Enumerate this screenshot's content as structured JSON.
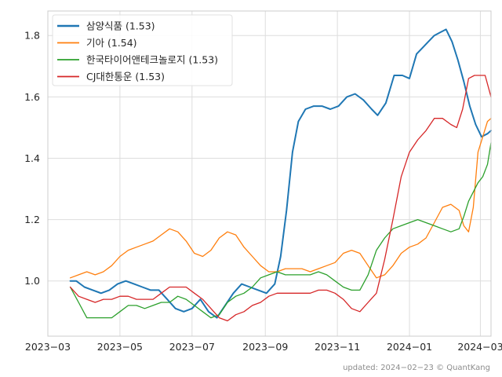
{
  "chart_data": {
    "type": "line",
    "title": "",
    "xlabel": "",
    "ylabel": "",
    "x_range": [
      "2023-03-01",
      "2024-03-10"
    ],
    "ylim": [
      0.82,
      1.88
    ],
    "grid": true,
    "legend_placement": "top-left",
    "x_ticks": [
      "2023-03-01",
      "2023-05-01",
      "2023-07-01",
      "2023-09-01",
      "2023-11-01",
      "2024-01-01",
      "2024-03-01"
    ],
    "x_tick_labels": [
      "2023−03",
      "2023−05",
      "2023−07",
      "2023−09",
      "2023−11",
      "2024−01",
      "2024−03"
    ],
    "y_ticks": [
      1.0,
      1.2,
      1.4,
      1.6,
      1.8
    ],
    "y_tick_labels": [
      "1.0",
      "1.2",
      "1.4",
      "1.6",
      "1.8"
    ],
    "footer": "updated: 2024−02−23 © QuantKang",
    "series": [
      {
        "name": "삼양식품 (1.53)",
        "color": "#1f77b4",
        "width": 2.0,
        "points": [
          [
            "2023-03-20",
            1.0
          ],
          [
            "2023-03-25",
            1.0
          ],
          [
            "2023-04-01",
            0.98
          ],
          [
            "2023-04-08",
            0.97
          ],
          [
            "2023-04-15",
            0.96
          ],
          [
            "2023-04-22",
            0.97
          ],
          [
            "2023-04-29",
            0.99
          ],
          [
            "2023-05-06",
            1.0
          ],
          [
            "2023-05-13",
            0.99
          ],
          [
            "2023-05-20",
            0.98
          ],
          [
            "2023-05-27",
            0.97
          ],
          [
            "2023-06-03",
            0.97
          ],
          [
            "2023-06-10",
            0.94
          ],
          [
            "2023-06-17",
            0.91
          ],
          [
            "2023-06-24",
            0.9
          ],
          [
            "2023-07-01",
            0.91
          ],
          [
            "2023-07-08",
            0.94
          ],
          [
            "2023-07-15",
            0.9
          ],
          [
            "2023-07-22",
            0.88
          ],
          [
            "2023-07-29",
            0.92
          ],
          [
            "2023-08-05",
            0.96
          ],
          [
            "2023-08-12",
            0.99
          ],
          [
            "2023-08-19",
            0.98
          ],
          [
            "2023-08-26",
            0.97
          ],
          [
            "2023-09-02",
            0.96
          ],
          [
            "2023-09-09",
            0.99
          ],
          [
            "2023-09-14",
            1.08
          ],
          [
            "2023-09-19",
            1.23
          ],
          [
            "2023-09-24",
            1.42
          ],
          [
            "2023-09-29",
            1.52
          ],
          [
            "2023-10-05",
            1.56
          ],
          [
            "2023-10-12",
            1.57
          ],
          [
            "2023-10-19",
            1.57
          ],
          [
            "2023-10-26",
            1.56
          ],
          [
            "2023-11-02",
            1.57
          ],
          [
            "2023-11-09",
            1.6
          ],
          [
            "2023-11-16",
            1.61
          ],
          [
            "2023-11-23",
            1.59
          ],
          [
            "2023-11-30",
            1.56
          ],
          [
            "2023-12-05",
            1.54
          ],
          [
            "2023-12-12",
            1.58
          ],
          [
            "2023-12-19",
            1.67
          ],
          [
            "2023-12-26",
            1.67
          ],
          [
            "2024-01-01",
            1.66
          ],
          [
            "2024-01-07",
            1.74
          ],
          [
            "2024-01-12",
            1.76
          ],
          [
            "2024-01-17",
            1.78
          ],
          [
            "2024-01-22",
            1.8
          ],
          [
            "2024-01-27",
            1.81
          ],
          [
            "2024-02-01",
            1.82
          ],
          [
            "2024-02-06",
            1.78
          ],
          [
            "2024-02-11",
            1.72
          ],
          [
            "2024-02-16",
            1.65
          ],
          [
            "2024-02-21",
            1.57
          ],
          [
            "2024-02-26",
            1.51
          ],
          [
            "2024-03-02",
            1.47
          ],
          [
            "2024-03-07",
            1.48
          ],
          [
            "2024-03-10",
            1.49
          ]
        ]
      },
      {
        "name": "기아 (1.54)",
        "color": "#ff7f0e",
        "width": 1.3,
        "points": [
          [
            "2023-03-20",
            1.01
          ],
          [
            "2023-03-27",
            1.02
          ],
          [
            "2023-04-03",
            1.03
          ],
          [
            "2023-04-10",
            1.02
          ],
          [
            "2023-04-17",
            1.03
          ],
          [
            "2023-04-24",
            1.05
          ],
          [
            "2023-05-01",
            1.08
          ],
          [
            "2023-05-08",
            1.1
          ],
          [
            "2023-05-15",
            1.11
          ],
          [
            "2023-05-22",
            1.12
          ],
          [
            "2023-05-29",
            1.13
          ],
          [
            "2023-06-05",
            1.15
          ],
          [
            "2023-06-12",
            1.17
          ],
          [
            "2023-06-19",
            1.16
          ],
          [
            "2023-06-26",
            1.13
          ],
          [
            "2023-07-03",
            1.09
          ],
          [
            "2023-07-10",
            1.08
          ],
          [
            "2023-07-17",
            1.1
          ],
          [
            "2023-07-24",
            1.14
          ],
          [
            "2023-07-31",
            1.16
          ],
          [
            "2023-08-07",
            1.15
          ],
          [
            "2023-08-14",
            1.11
          ],
          [
            "2023-08-21",
            1.08
          ],
          [
            "2023-08-28",
            1.05
          ],
          [
            "2023-09-04",
            1.03
          ],
          [
            "2023-09-11",
            1.03
          ],
          [
            "2023-09-18",
            1.04
          ],
          [
            "2023-09-25",
            1.04
          ],
          [
            "2023-10-02",
            1.04
          ],
          [
            "2023-10-09",
            1.03
          ],
          [
            "2023-10-16",
            1.04
          ],
          [
            "2023-10-23",
            1.05
          ],
          [
            "2023-10-30",
            1.06
          ],
          [
            "2023-11-06",
            1.09
          ],
          [
            "2023-11-13",
            1.1
          ],
          [
            "2023-11-20",
            1.09
          ],
          [
            "2023-11-27",
            1.05
          ],
          [
            "2023-12-04",
            1.01
          ],
          [
            "2023-12-11",
            1.02
          ],
          [
            "2023-12-18",
            1.05
          ],
          [
            "2023-12-25",
            1.09
          ],
          [
            "2024-01-01",
            1.11
          ],
          [
            "2024-01-08",
            1.12
          ],
          [
            "2024-01-15",
            1.14
          ],
          [
            "2024-01-22",
            1.19
          ],
          [
            "2024-01-29",
            1.24
          ],
          [
            "2024-02-05",
            1.25
          ],
          [
            "2024-02-12",
            1.23
          ],
          [
            "2024-02-16",
            1.18
          ],
          [
            "2024-02-20",
            1.16
          ],
          [
            "2024-02-24",
            1.24
          ],
          [
            "2024-02-28",
            1.42
          ],
          [
            "2024-03-03",
            1.47
          ],
          [
            "2024-03-07",
            1.52
          ],
          [
            "2024-03-10",
            1.53
          ]
        ]
      },
      {
        "name": "한국타이어앤테크놀로지 (1.53)",
        "color": "#2ca02c",
        "width": 1.3,
        "points": [
          [
            "2023-03-20",
            0.98
          ],
          [
            "2023-03-27",
            0.93
          ],
          [
            "2023-04-03",
            0.88
          ],
          [
            "2023-04-10",
            0.88
          ],
          [
            "2023-04-17",
            0.88
          ],
          [
            "2023-04-24",
            0.88
          ],
          [
            "2023-05-01",
            0.9
          ],
          [
            "2023-05-08",
            0.92
          ],
          [
            "2023-05-15",
            0.92
          ],
          [
            "2023-05-22",
            0.91
          ],
          [
            "2023-05-29",
            0.92
          ],
          [
            "2023-06-05",
            0.93
          ],
          [
            "2023-06-12",
            0.93
          ],
          [
            "2023-06-19",
            0.95
          ],
          [
            "2023-06-26",
            0.94
          ],
          [
            "2023-07-03",
            0.92
          ],
          [
            "2023-07-10",
            0.9
          ],
          [
            "2023-07-17",
            0.88
          ],
          [
            "2023-07-24",
            0.89
          ],
          [
            "2023-07-31",
            0.93
          ],
          [
            "2023-08-07",
            0.95
          ],
          [
            "2023-08-14",
            0.96
          ],
          [
            "2023-08-21",
            0.98
          ],
          [
            "2023-08-28",
            1.01
          ],
          [
            "2023-09-04",
            1.02
          ],
          [
            "2023-09-11",
            1.03
          ],
          [
            "2023-09-18",
            1.02
          ],
          [
            "2023-09-25",
            1.02
          ],
          [
            "2023-10-02",
            1.02
          ],
          [
            "2023-10-09",
            1.02
          ],
          [
            "2023-10-16",
            1.03
          ],
          [
            "2023-10-23",
            1.02
          ],
          [
            "2023-10-30",
            1.0
          ],
          [
            "2023-11-06",
            0.98
          ],
          [
            "2023-11-13",
            0.97
          ],
          [
            "2023-11-20",
            0.97
          ],
          [
            "2023-11-27",
            1.02
          ],
          [
            "2023-12-04",
            1.1
          ],
          [
            "2023-12-11",
            1.14
          ],
          [
            "2023-12-18",
            1.17
          ],
          [
            "2023-12-25",
            1.18
          ],
          [
            "2024-01-01",
            1.19
          ],
          [
            "2024-01-08",
            1.2
          ],
          [
            "2024-01-15",
            1.19
          ],
          [
            "2024-01-22",
            1.18
          ],
          [
            "2024-01-29",
            1.17
          ],
          [
            "2024-02-05",
            1.16
          ],
          [
            "2024-02-12",
            1.17
          ],
          [
            "2024-02-16",
            1.21
          ],
          [
            "2024-02-20",
            1.26
          ],
          [
            "2024-02-24",
            1.29
          ],
          [
            "2024-02-28",
            1.32
          ],
          [
            "2024-03-03",
            1.34
          ],
          [
            "2024-03-07",
            1.38
          ],
          [
            "2024-03-10",
            1.45
          ]
        ]
      },
      {
        "name": "CJ대한통운 (1.53)",
        "color": "#d62728",
        "width": 1.3,
        "points": [
          [
            "2023-03-20",
            0.98
          ],
          [
            "2023-03-27",
            0.95
          ],
          [
            "2023-04-03",
            0.94
          ],
          [
            "2023-04-10",
            0.93
          ],
          [
            "2023-04-17",
            0.94
          ],
          [
            "2023-04-24",
            0.94
          ],
          [
            "2023-05-01",
            0.95
          ],
          [
            "2023-05-08",
            0.95
          ],
          [
            "2023-05-15",
            0.94
          ],
          [
            "2023-05-22",
            0.94
          ],
          [
            "2023-05-29",
            0.94
          ],
          [
            "2023-06-05",
            0.96
          ],
          [
            "2023-06-12",
            0.98
          ],
          [
            "2023-06-19",
            0.98
          ],
          [
            "2023-06-26",
            0.98
          ],
          [
            "2023-07-03",
            0.96
          ],
          [
            "2023-07-10",
            0.94
          ],
          [
            "2023-07-17",
            0.91
          ],
          [
            "2023-07-24",
            0.88
          ],
          [
            "2023-07-31",
            0.87
          ],
          [
            "2023-08-07",
            0.89
          ],
          [
            "2023-08-14",
            0.9
          ],
          [
            "2023-08-21",
            0.92
          ],
          [
            "2023-08-28",
            0.93
          ],
          [
            "2023-09-04",
            0.95
          ],
          [
            "2023-09-11",
            0.96
          ],
          [
            "2023-09-18",
            0.96
          ],
          [
            "2023-09-25",
            0.96
          ],
          [
            "2023-10-02",
            0.96
          ],
          [
            "2023-10-09",
            0.96
          ],
          [
            "2023-10-16",
            0.97
          ],
          [
            "2023-10-23",
            0.97
          ],
          [
            "2023-10-30",
            0.96
          ],
          [
            "2023-11-06",
            0.94
          ],
          [
            "2023-11-13",
            0.91
          ],
          [
            "2023-11-20",
            0.9
          ],
          [
            "2023-11-27",
            0.93
          ],
          [
            "2023-12-04",
            0.96
          ],
          [
            "2023-12-11",
            1.07
          ],
          [
            "2023-12-18",
            1.2
          ],
          [
            "2023-12-25",
            1.34
          ],
          [
            "2024-01-01",
            1.42
          ],
          [
            "2024-01-08",
            1.46
          ],
          [
            "2024-01-15",
            1.49
          ],
          [
            "2024-01-22",
            1.53
          ],
          [
            "2024-01-29",
            1.53
          ],
          [
            "2024-02-05",
            1.51
          ],
          [
            "2024-02-10",
            1.5
          ],
          [
            "2024-02-15",
            1.56
          ],
          [
            "2024-02-20",
            1.66
          ],
          [
            "2024-02-25",
            1.67
          ],
          [
            "2024-03-01",
            1.67
          ],
          [
            "2024-03-05",
            1.67
          ],
          [
            "2024-03-10",
            1.6
          ]
        ]
      }
    ]
  }
}
